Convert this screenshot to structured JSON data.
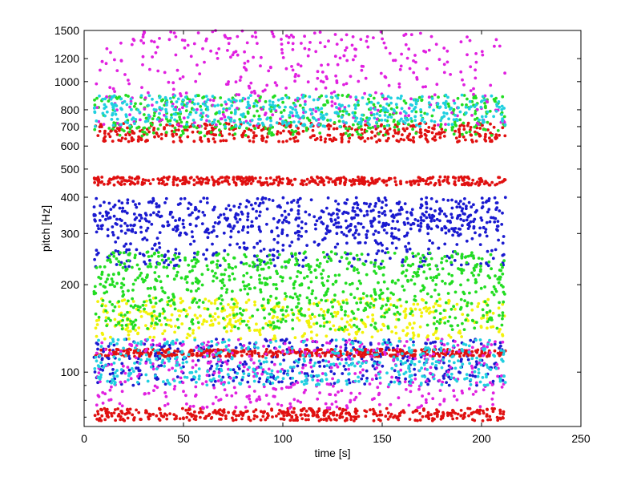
{
  "chart_data": {
    "type": "scatter",
    "xlabel": "time [s]",
    "ylabel": "pitch [Hz]",
    "xlim": [
      0,
      250
    ],
    "ylim": [
      65,
      1500
    ],
    "yscale": "log",
    "x_ticks": [
      0,
      50,
      100,
      150,
      200,
      250
    ],
    "y_ticks": [
      100,
      200,
      300,
      400,
      500,
      600,
      700,
      800,
      1000,
      1200,
      1500
    ],
    "y_minor_ticks": [
      70,
      80,
      90
    ],
    "grid": false,
    "legend": "none",
    "x_range_of_points": [
      5,
      212
    ],
    "series": [
      {
        "color": "#1a1ad0",
        "bands": [
          [
            230,
            360
          ],
          [
            300,
            400
          ],
          [
            90,
            130
          ]
        ]
      },
      {
        "color": "#e01010",
        "bands": [
          [
            620,
            720
          ],
          [
            440,
            470
          ],
          [
            68,
            75
          ],
          [
            113,
            120
          ]
        ]
      },
      {
        "color": "#f2f20a",
        "bands": [
          [
            130,
            180
          ]
        ]
      },
      {
        "color": "#22dd22",
        "bands": [
          [
            140,
            200
          ],
          [
            200,
            260
          ],
          [
            650,
            900
          ]
        ]
      },
      {
        "color": "#e020e0",
        "bands": [
          [
            75,
            130
          ],
          [
            700,
            1500
          ]
        ]
      },
      {
        "color": "#20d0e0",
        "bands": [
          [
            90,
            130
          ],
          [
            700,
            900
          ]
        ]
      }
    ]
  }
}
